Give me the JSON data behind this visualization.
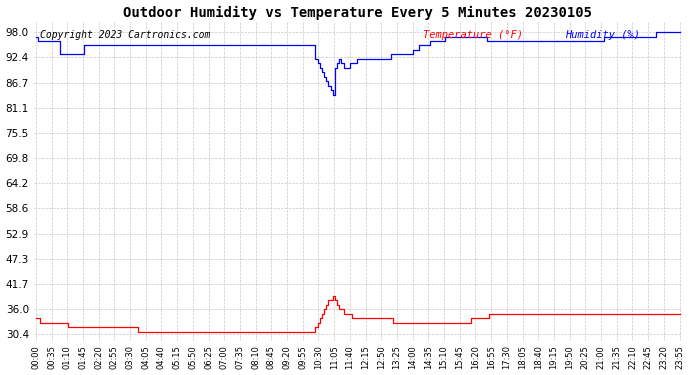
{
  "title": "Outdoor Humidity vs Temperature Every 5 Minutes 20230105",
  "copyright": "Copyright 2023 Cartronics.com",
  "legend_temp": "Temperature (°F)",
  "legend_hum": "Humidity (%)",
  "temp_color": "#ff0000",
  "hum_color": "#0000ff",
  "background_color": "#ffffff",
  "grid_color": "#b0b0b0",
  "yticks": [
    30.4,
    36.0,
    41.7,
    47.3,
    52.9,
    58.6,
    64.2,
    69.8,
    75.5,
    81.1,
    86.7,
    92.4,
    98.0
  ],
  "ylim": [
    29.0,
    100.5
  ],
  "humidity_data": [
    97,
    96,
    96,
    96,
    96,
    96,
    96,
    96,
    96,
    96,
    96,
    93,
    93,
    93,
    93,
    93,
    93,
    93,
    93,
    93,
    93,
    93,
    95,
    95,
    95,
    95,
    95,
    95,
    95,
    95,
    95,
    95,
    95,
    95,
    95,
    95,
    95,
    95,
    95,
    95,
    95,
    95,
    95,
    95,
    95,
    95,
    95,
    95,
    95,
    95,
    95,
    95,
    95,
    95,
    95,
    95,
    95,
    95,
    95,
    95,
    95,
    95,
    95,
    95,
    95,
    95,
    95,
    95,
    95,
    95,
    95,
    95,
    95,
    95,
    95,
    95,
    95,
    95,
    95,
    95,
    95,
    95,
    95,
    95,
    95,
    95,
    95,
    95,
    95,
    95,
    95,
    95,
    95,
    95,
    95,
    95,
    95,
    95,
    95,
    95,
    95,
    95,
    95,
    95,
    95,
    95,
    95,
    95,
    95,
    95,
    95,
    95,
    95,
    95,
    95,
    95,
    95,
    95,
    95,
    95,
    95,
    95,
    95,
    95,
    95,
    95,
    95,
    95,
    95,
    92,
    91,
    90,
    89,
    88,
    87,
    86,
    85,
    84,
    90,
    91,
    92,
    91,
    90,
    90,
    90,
    91,
    91,
    91,
    92,
    92,
    92,
    92,
    92,
    92,
    92,
    92,
    92,
    92,
    92,
    92,
    92,
    92,
    92,
    92,
    93,
    93,
    93,
    93,
    93,
    93,
    93,
    93,
    93,
    93,
    94,
    94,
    94,
    95,
    95,
    95,
    95,
    95,
    96,
    96,
    96,
    96,
    96,
    96,
    96,
    97,
    97,
    97,
    97,
    97,
    97,
    97,
    97,
    97,
    97,
    97,
    97,
    97,
    97,
    97,
    97,
    97,
    97,
    97,
    96,
    96,
    96,
    96,
    96,
    96,
    96,
    96,
    96,
    96,
    96,
    96,
    96,
    96,
    96,
    96,
    96,
    96,
    96,
    96,
    96,
    96,
    96,
    96,
    96,
    96,
    96,
    96,
    96,
    96,
    96,
    96,
    96,
    96,
    96,
    96,
    96,
    96,
    96,
    96,
    96,
    96,
    96,
    96,
    96,
    96,
    96,
    96,
    96,
    96,
    96,
    96,
    96,
    96,
    97,
    97,
    97,
    97,
    97,
    97,
    97,
    97,
    97,
    97,
    97,
    97,
    97,
    97,
    97,
    97,
    97,
    97,
    97,
    97,
    97,
    97,
    97,
    97,
    98,
    98,
    98,
    98,
    98,
    98,
    98,
    98,
    98,
    98,
    98,
    98
  ],
  "temperature_data": [
    34,
    34,
    33,
    33,
    33,
    33,
    33,
    33,
    33,
    33,
    33,
    33,
    33,
    33,
    33,
    32,
    32,
    32,
    32,
    32,
    32,
    32,
    32,
    32,
    32,
    32,
    32,
    32,
    32,
    32,
    32,
    32,
    32,
    32,
    32,
    32,
    32,
    32,
    32,
    32,
    32,
    32,
    32,
    32,
    32,
    32,
    32,
    31,
    31,
    31,
    31,
    31,
    31,
    31,
    31,
    31,
    31,
    31,
    31,
    31,
    31,
    31,
    31,
    31,
    31,
    31,
    31,
    31,
    31,
    31,
    31,
    31,
    31,
    31,
    31,
    31,
    31,
    31,
    31,
    31,
    31,
    31,
    31,
    31,
    31,
    31,
    31,
    31,
    31,
    31,
    31,
    31,
    31,
    31,
    31,
    31,
    31,
    31,
    31,
    31,
    31,
    31,
    31,
    31,
    31,
    31,
    31,
    31,
    31,
    31,
    31,
    31,
    31,
    31,
    31,
    31,
    31,
    31,
    31,
    31,
    31,
    31,
    31,
    31,
    31,
    31,
    31,
    31,
    31,
    32,
    33,
    34,
    35,
    36,
    37,
    38,
    38,
    39,
    38,
    37,
    36,
    36,
    35,
    35,
    35,
    35,
    34,
    34,
    34,
    34,
    34,
    34,
    34,
    34,
    34,
    34,
    34,
    34,
    34,
    34,
    34,
    34,
    34,
    34,
    34,
    33,
    33,
    33,
    33,
    33,
    33,
    33,
    33,
    33,
    33,
    33,
    33,
    33,
    33,
    33,
    33,
    33,
    33,
    33,
    33,
    33,
    33,
    33,
    33,
    33,
    33,
    33,
    33,
    33,
    33,
    33,
    33,
    33,
    33,
    33,
    33,
    34,
    34,
    34,
    34,
    34,
    34,
    34,
    34,
    35,
    35,
    35,
    35,
    35,
    35,
    35,
    35,
    35,
    35,
    35,
    35,
    35,
    35,
    35,
    35,
    35,
    35,
    35,
    35,
    35,
    35,
    35,
    35,
    35,
    35,
    35,
    35,
    35,
    35,
    35,
    35,
    35,
    35,
    35,
    35,
    35,
    35,
    35,
    35,
    35,
    35,
    35,
    35,
    35,
    35,
    35,
    35,
    35,
    35,
    35,
    35,
    35,
    35,
    35,
    35,
    35,
    35,
    35,
    35,
    35,
    35,
    35,
    35,
    35,
    35,
    35,
    35,
    35,
    35,
    35,
    35,
    35,
    35,
    35,
    35,
    35,
    35,
    35,
    35,
    35,
    35,
    35,
    35,
    35,
    35,
    35,
    35,
    35
  ],
  "xtick_labels": [
    "00:00",
    "00:35",
    "01:10",
    "01:45",
    "02:20",
    "02:55",
    "03:30",
    "04:05",
    "04:40",
    "05:15",
    "05:50",
    "06:25",
    "07:00",
    "07:35",
    "08:10",
    "08:45",
    "09:20",
    "09:55",
    "10:30",
    "11:05",
    "11:40",
    "12:15",
    "12:50",
    "13:25",
    "14:00",
    "14:35",
    "15:10",
    "15:45",
    "16:20",
    "16:55",
    "17:30",
    "18:05",
    "18:40",
    "19:15",
    "19:50",
    "20:25",
    "21:00",
    "21:35",
    "22:10",
    "22:45",
    "23:20",
    "23:55"
  ],
  "title_fontsize": 10,
  "ytick_fontsize": 7.5,
  "xtick_fontsize": 6,
  "copyright_fontsize": 7,
  "legend_fontsize": 7.5
}
